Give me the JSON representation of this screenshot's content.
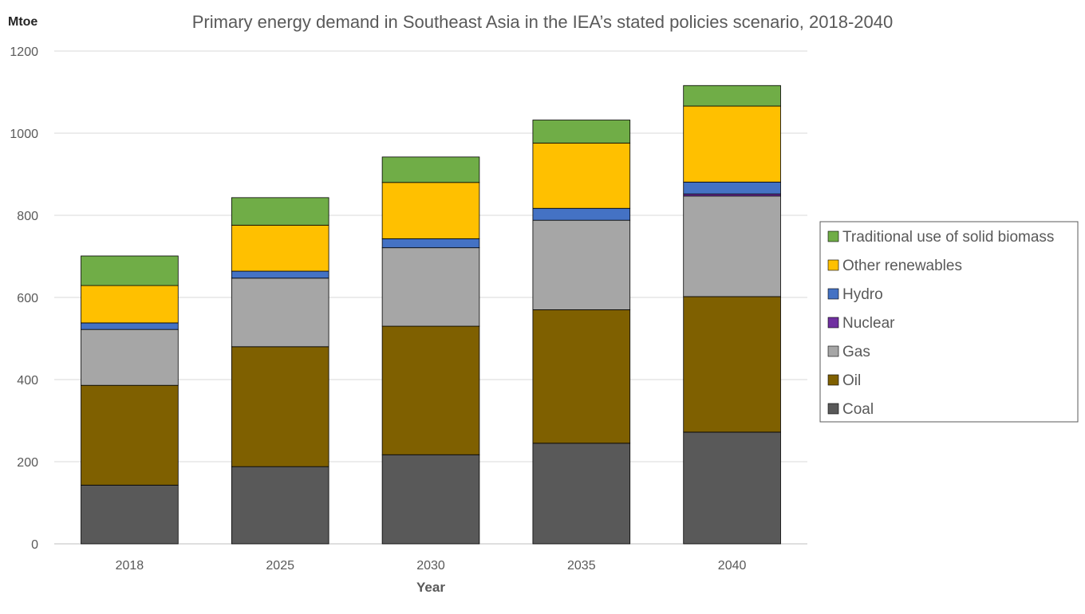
{
  "chart_data": {
    "type": "bar",
    "stacked": true,
    "title": "Primary energy demand in Southeast Asia in the IEA’s stated policies scenario, 2018-2040",
    "ylabel": "Mtoe",
    "xlabel": "Year",
    "ylim": [
      0,
      1200
    ],
    "yticks": [
      0,
      200,
      400,
      600,
      800,
      1000,
      1200
    ],
    "grid": true,
    "legend_position": "right",
    "categories": [
      "2018",
      "2025",
      "2030",
      "2035",
      "2040"
    ],
    "series": [
      {
        "name": "Coal",
        "color": "#595959",
        "values": [
          143,
          188,
          217,
          245,
          272
        ]
      },
      {
        "name": "Oil",
        "color": "#7f6000",
        "values": [
          243,
          292,
          313,
          325,
          330
        ]
      },
      {
        "name": "Gas",
        "color": "#a6a6a6",
        "values": [
          136,
          167,
          191,
          218,
          245
        ]
      },
      {
        "name": "Nuclear",
        "color": "#7030a0",
        "values": [
          0,
          0,
          0,
          0,
          5
        ]
      },
      {
        "name": "Hydro",
        "color": "#4472c4",
        "values": [
          16,
          17,
          22,
          29,
          29
        ]
      },
      {
        "name": "Other renewables",
        "color": "#ffc000",
        "values": [
          91,
          112,
          137,
          159,
          185
        ]
      },
      {
        "name": "Traditional use of solid biomass",
        "color": "#70ad47",
        "values": [
          72,
          67,
          62,
          56,
          50
        ]
      }
    ]
  }
}
